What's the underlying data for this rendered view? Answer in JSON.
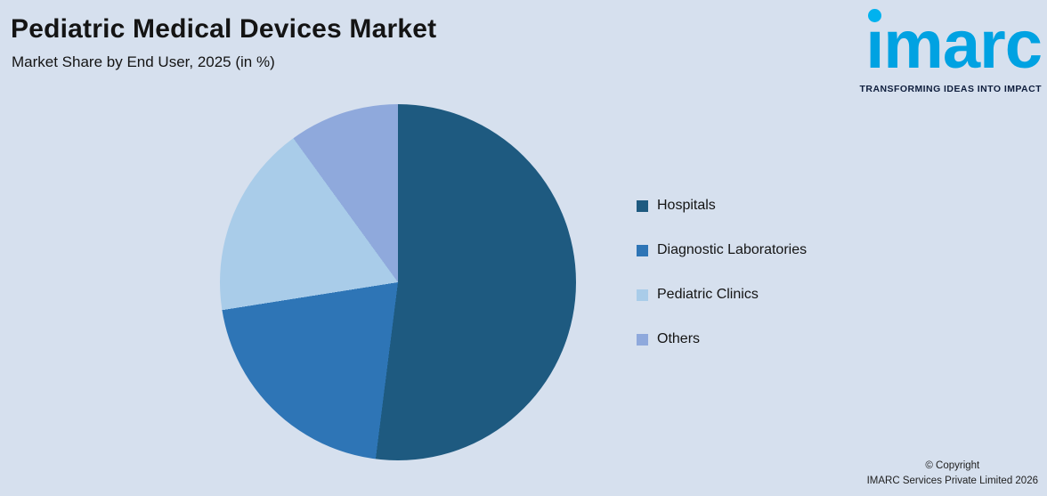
{
  "header": {
    "title": "Pediatric Medical Devices Market",
    "subtitle": "Market Share by End User, 2025 (in %)"
  },
  "logo": {
    "text": "imarc",
    "tagline": "TRANSFORMING IDEAS INTO IMPACT",
    "brand_color": "#00a2e2"
  },
  "footer": {
    "line1": "© Copyright",
    "line2": "IMARC Services Private Limited 2026"
  },
  "colors": {
    "background": "#d6e0ee"
  },
  "chart_data": {
    "type": "pie",
    "title": "Pediatric Medical Devices Market",
    "subtitle": "Market Share by End User, 2025 (in %)",
    "unit": "%",
    "start_angle_deg": 0,
    "direction": "clockwise",
    "legend_position": "right",
    "data_labels_shown": false,
    "segments": [
      {
        "label": "Hospitals",
        "value": 52.0,
        "color": "#1e5a80"
      },
      {
        "label": "Diagnostic Laboratories",
        "value": 20.5,
        "color": "#2e75b6"
      },
      {
        "label": "Pediatric Clinics",
        "value": 17.5,
        "color": "#a9cce9"
      },
      {
        "label": "Others",
        "value": 10.0,
        "color": "#8fa9dc"
      }
    ]
  }
}
